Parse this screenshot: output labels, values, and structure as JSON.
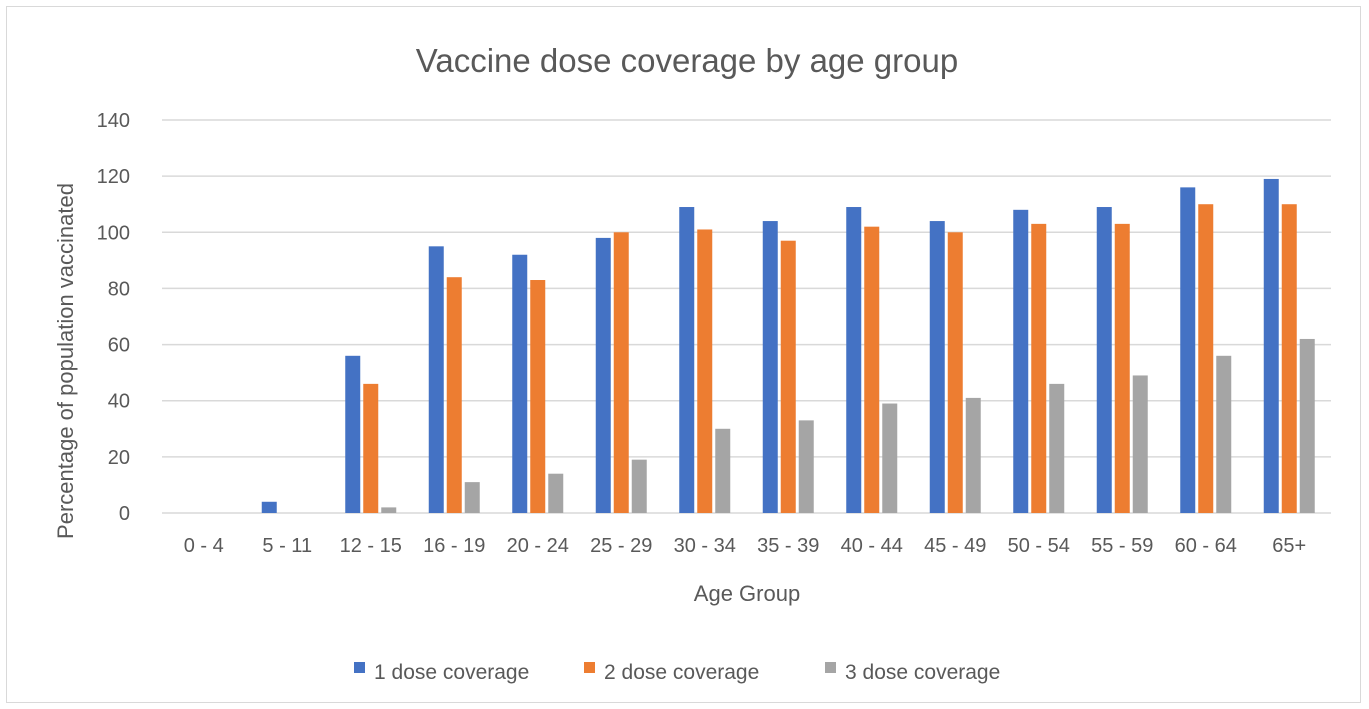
{
  "chart_data": {
    "type": "bar",
    "title": "Vaccine dose coverage by age group",
    "xlabel": "Age Group",
    "ylabel": "Percentage of population vaccinated",
    "ylim": [
      0,
      140
    ],
    "yticks": [
      0,
      20,
      40,
      60,
      80,
      100,
      120,
      140
    ],
    "grid": true,
    "legend_position": "bottom",
    "categories": [
      "0 - 4",
      "5 - 11",
      "12 - 15",
      "16 - 19",
      "20 - 24",
      "25 - 29",
      "30 - 34",
      "35 - 39",
      "40 - 44",
      "45 - 49",
      "50 - 54",
      "55 - 59",
      "60 - 64",
      "65+"
    ],
    "series": [
      {
        "name": "1 dose coverage",
        "color": "#4472c4",
        "values": [
          0,
          4,
          56,
          95,
          92,
          98,
          109,
          104,
          109,
          104,
          108,
          109,
          116,
          119
        ]
      },
      {
        "name": "2 dose coverage",
        "color": "#ed7d31",
        "values": [
          0,
          0,
          46,
          84,
          83,
          100,
          101,
          97,
          102,
          100,
          103,
          103,
          110,
          110
        ]
      },
      {
        "name": "3 dose coverage",
        "color": "#a5a5a5",
        "values": [
          0,
          0,
          2,
          11,
          14,
          19,
          30,
          33,
          39,
          41,
          46,
          49,
          56,
          62
        ]
      }
    ]
  }
}
